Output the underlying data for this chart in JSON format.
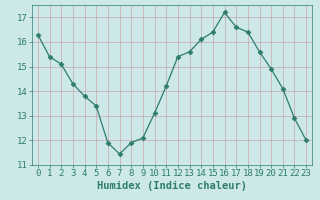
{
  "x": [
    0,
    1,
    2,
    3,
    4,
    5,
    6,
    7,
    8,
    9,
    10,
    11,
    12,
    13,
    14,
    15,
    16,
    17,
    18,
    19,
    20,
    21,
    22,
    23
  ],
  "y": [
    16.3,
    15.4,
    15.1,
    14.3,
    13.8,
    13.4,
    11.9,
    11.45,
    11.9,
    12.1,
    13.1,
    14.2,
    15.4,
    15.6,
    16.1,
    16.4,
    17.2,
    16.6,
    16.4,
    15.6,
    14.9,
    14.1,
    12.9,
    12.0
  ],
  "line_color": "#2e7d6e",
  "marker": "D",
  "marker_size": 2.5,
  "bg_color": "#cce8e8",
  "grid_color_major": "#b8d0d0",
  "xlabel": "Humidex (Indice chaleur)",
  "ylim": [
    11,
    17.5
  ],
  "xlim": [
    -0.5,
    23.5
  ],
  "yticks": [
    11,
    12,
    13,
    14,
    15,
    16,
    17
  ],
  "xticks": [
    0,
    1,
    2,
    3,
    4,
    5,
    6,
    7,
    8,
    9,
    10,
    11,
    12,
    13,
    14,
    15,
    16,
    17,
    18,
    19,
    20,
    21,
    22,
    23
  ],
  "tick_fontsize": 6.5,
  "xlabel_fontsize": 7.5
}
